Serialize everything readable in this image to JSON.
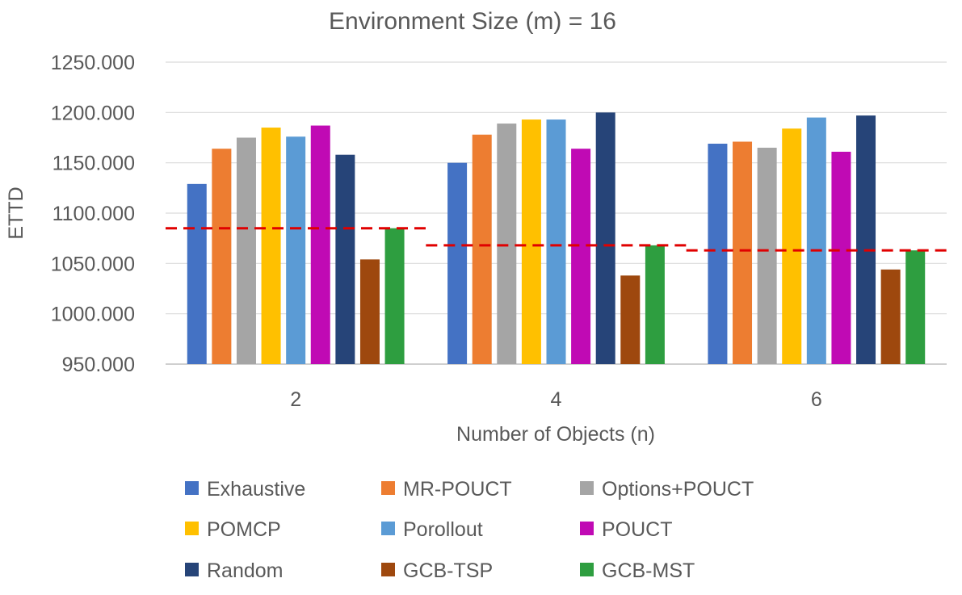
{
  "chart_data": {
    "type": "bar",
    "title": "Environment Size (m) = 16",
    "xlabel": "Number of Objects (n)",
    "ylabel": "ETTD",
    "ylim": [
      950,
      1250
    ],
    "yticks": [
      "950.000",
      "1000.000",
      "1050.000",
      "1100.000",
      "1150.000",
      "1200.000",
      "1250.000"
    ],
    "categories": [
      "2",
      "4",
      "6"
    ],
    "grid": true,
    "legend_position": "bottom",
    "series": [
      {
        "name": "Exhaustive",
        "color": "#4472C4",
        "values": [
          1129,
          1150,
          1169
        ]
      },
      {
        "name": "MR-POUCT",
        "color": "#ED7D31",
        "values": [
          1164,
          1178,
          1171
        ]
      },
      {
        "name": "Options+POUCT",
        "color": "#A5A5A5",
        "values": [
          1175,
          1189,
          1165
        ]
      },
      {
        "name": "POMCP",
        "color": "#FFC000",
        "values": [
          1185,
          1193,
          1184
        ]
      },
      {
        "name": "Porollout",
        "color": "#5B9BD5",
        "values": [
          1176,
          1193,
          1195
        ]
      },
      {
        "name": "POUCT",
        "color": "#C00AB4",
        "values": [
          1187,
          1164,
          1161
        ]
      },
      {
        "name": "Random",
        "color": "#264478",
        "values": [
          1158,
          1200,
          1197
        ]
      },
      {
        "name": "GCB-TSP",
        "color": "#9E480E",
        "values": [
          1054,
          1038,
          1044
        ]
      },
      {
        "name": "GCB-MST",
        "color": "#2E9E40",
        "values": [
          1085,
          1068,
          1063
        ]
      }
    ],
    "reference_lines": {
      "color": "#E00000",
      "style": "dashed",
      "values": [
        1085,
        1068,
        1063
      ]
    }
  }
}
